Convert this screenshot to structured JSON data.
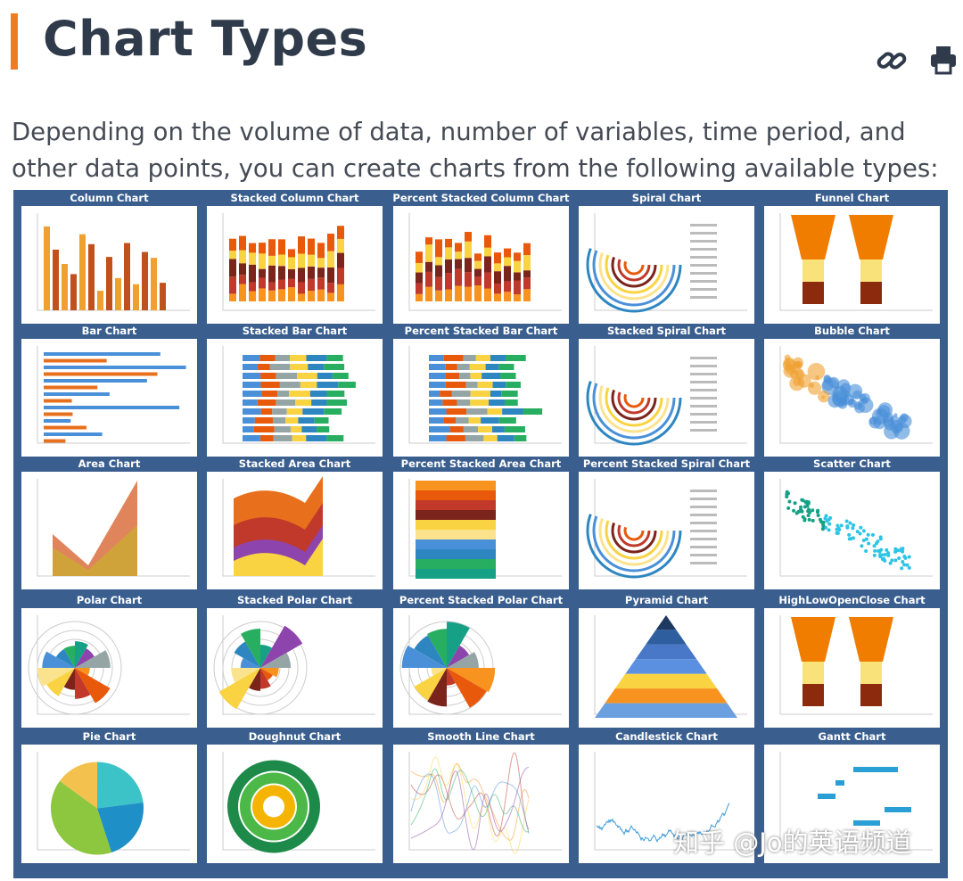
{
  "header": {
    "title": "Chart Types"
  },
  "intro": "Depending on the volume of data, number of variables, time period, and other data points, you can create charts from the following available types:",
  "tiles": [
    "Column Chart",
    "Stacked Column Chart",
    "Percent Stacked Column Chart",
    "Spiral Chart",
    "Funnel Chart",
    "Bar Chart",
    "Stacked Bar Chart",
    "Percent Stacked Bar Chart",
    "Stacked Spiral Chart",
    "Bubble Chart",
    "Area Chart",
    "Stacked Area Chart",
    "Percent Stacked Area Chart",
    "Percent Stacked Spiral Chart",
    "Scatter Chart",
    "Polar Chart",
    "Stacked Polar Chart",
    "Percent Stacked Polar Chart",
    "Pyramid Chart",
    "HighLowOpenClose Chart",
    "Pie Chart",
    "Doughnut Chart",
    "Smooth Line Chart",
    "Candlestick Chart",
    "Gantt Chart"
  ],
  "watermark": "知乎 @Jo的英语频道"
}
